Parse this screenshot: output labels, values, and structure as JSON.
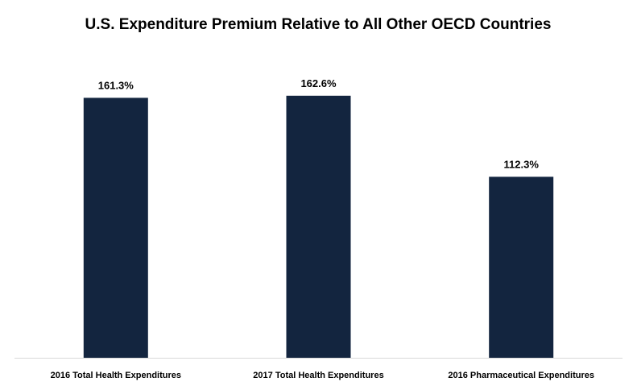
{
  "chart_data": {
    "type": "bar",
    "title": "U.S. Expenditure Premium Relative to All Other OECD Countries",
    "xlabel": "",
    "ylabel": "",
    "categories": [
      "2016 Total Health Expenditures",
      "2017 Total Health Expenditures",
      "2016 Pharmaceutical Expenditures"
    ],
    "values": [
      161.3,
      162.6,
      112.3
    ],
    "data_labels": [
      "161.3%",
      "162.6%",
      "112.3%"
    ],
    "ylim": [
      0,
      180
    ],
    "unit": "%",
    "grid": false,
    "legend": "none",
    "bar_color": "#13253F",
    "axis_color": "#d9d9d9"
  }
}
